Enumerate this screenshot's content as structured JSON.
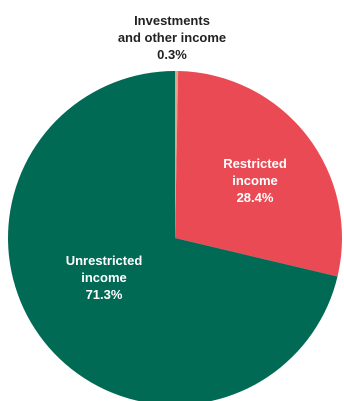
{
  "chart_data": {
    "type": "pie",
    "slices": [
      {
        "label_lines": [
          "Investments",
          "and other income"
        ],
        "value": 0.3,
        "value_text": "0.3%",
        "color": "#e0a48b",
        "label_color": "#222222"
      },
      {
        "label_lines": [
          "Restricted",
          "income"
        ],
        "value": 28.4,
        "value_text": "28.4%",
        "color": "#e94a54",
        "label_color": "#ffffff"
      },
      {
        "label_lines": [
          "Unrestricted",
          "income"
        ],
        "value": 71.3,
        "value_text": "71.3%",
        "color": "#006a55",
        "label_color": "#ffffff"
      }
    ],
    "start": "12 o'clock",
    "direction": "clockwise"
  }
}
